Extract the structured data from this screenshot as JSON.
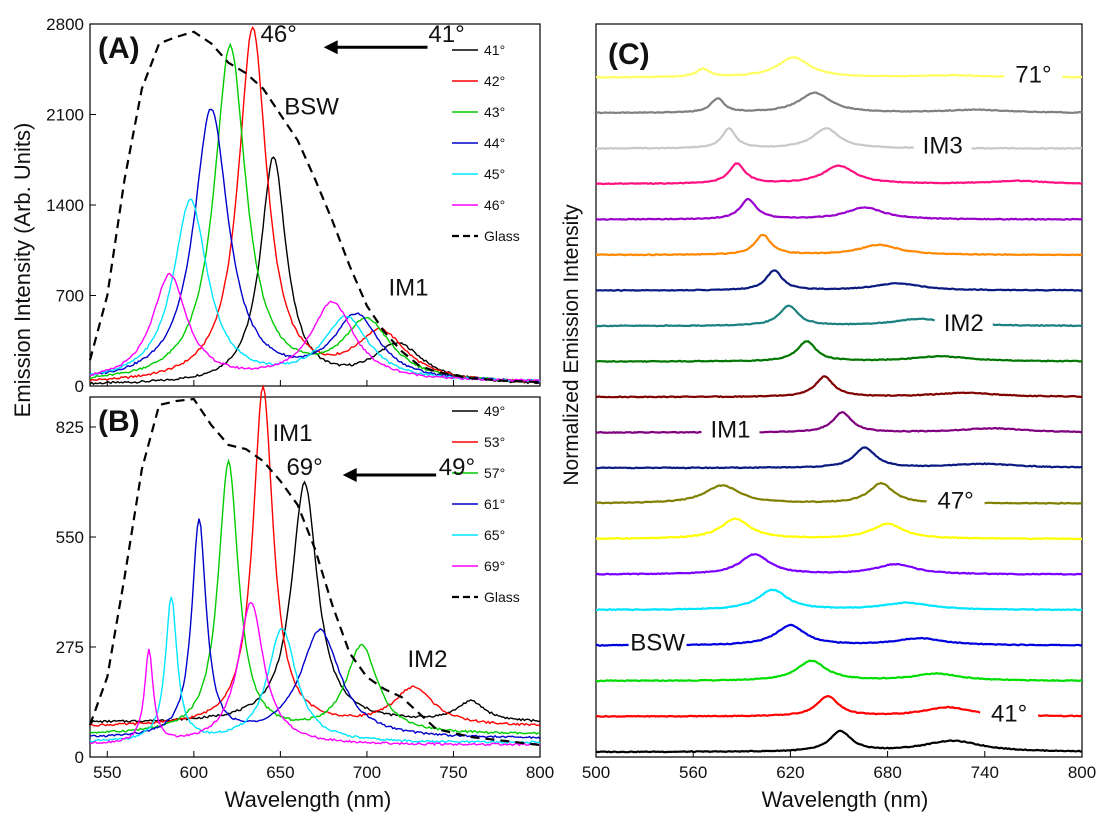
{
  "figure": {
    "y_title_left": "Emission Intensity (Arb. Units)",
    "y_title_right": "Normalized Emission Intensity",
    "x_title": "Wavelength (nm)"
  },
  "chart_data": [
    {
      "panel": "A",
      "type": "line",
      "panel_label": "(A)",
      "xlim": [
        540,
        800
      ],
      "ylim": [
        0,
        2800
      ],
      "xticks": [],
      "yticks": [
        0,
        700,
        1400,
        2100,
        2800
      ],
      "annotations": [
        {
          "text": "BSW",
          "x": 668,
          "y": 2100
        },
        {
          "text": "IM1",
          "x": 724,
          "y": 700
        },
        {
          "text": "46°",
          "x": 649,
          "y": 2660
        },
        {
          "text": "41°",
          "x": 746,
          "y": 2660
        }
      ],
      "arrow": {
        "from": [
          735,
          2620
        ],
        "to": [
          675,
          2620
        ]
      },
      "legend": {
        "position": "top-right",
        "entries": [
          "41°",
          "42°",
          "43°",
          "44°",
          "45°",
          "46°",
          "Glass"
        ]
      },
      "series": [
        {
          "name": "41°",
          "color": "#000000",
          "peaks": [
            [
              646,
              1750,
              9
            ],
            [
              718,
              300,
              18
            ]
          ],
          "baseline": 5
        },
        {
          "name": "42°",
          "color": "#ff0000",
          "peaks": [
            [
              634,
              2740,
              10
            ],
            [
              708,
              380,
              18
            ]
          ],
          "baseline": 10
        },
        {
          "name": "43°",
          "color": "#00cc00",
          "peaks": [
            [
              621,
              2600,
              11
            ],
            [
              700,
              460,
              17
            ]
          ],
          "baseline": 15
        },
        {
          "name": "44°",
          "color": "#0000cc",
          "peaks": [
            [
              610,
              2110,
              12
            ],
            [
              694,
              500,
              16
            ]
          ],
          "baseline": 20
        },
        {
          "name": "45°",
          "color": "#00e5ff",
          "peaks": [
            [
              598,
              1400,
              12
            ],
            [
              688,
              490,
              16
            ]
          ],
          "baseline": 25
        },
        {
          "name": "46°",
          "color": "#ff00ff",
          "peaks": [
            [
              586,
              820,
              12
            ],
            [
              680,
              610,
              15
            ]
          ],
          "baseline": 30
        },
        {
          "name": "Glass",
          "color": "#000000",
          "dash": true,
          "points": [
            [
              540,
              200
            ],
            [
              550,
              700
            ],
            [
              560,
              1600
            ],
            [
              570,
              2300
            ],
            [
              580,
              2650
            ],
            [
              590,
              2700
            ],
            [
              600,
              2740
            ],
            [
              610,
              2650
            ],
            [
              620,
              2500
            ],
            [
              630,
              2420
            ],
            [
              640,
              2300
            ],
            [
              650,
              2100
            ],
            [
              660,
              1900
            ],
            [
              670,
              1600
            ],
            [
              680,
              1280
            ],
            [
              690,
              930
            ],
            [
              700,
              620
            ],
            [
              710,
              420
            ],
            [
              720,
              270
            ],
            [
              730,
              160
            ],
            [
              740,
              110
            ],
            [
              760,
              60
            ],
            [
              780,
              40
            ],
            [
              800,
              30
            ]
          ]
        }
      ]
    },
    {
      "panel": "B",
      "type": "line",
      "panel_label": "(B)",
      "xlim": [
        540,
        800
      ],
      "ylim": [
        0,
        900
      ],
      "xticks": [
        550,
        600,
        650,
        700,
        750,
        800
      ],
      "yticks": [
        0,
        275,
        550,
        825
      ],
      "annotations": [
        {
          "text": "IM1",
          "x": 657,
          "y": 790
        },
        {
          "text": "IM2",
          "x": 735,
          "y": 225
        },
        {
          "text": "69°",
          "x": 664,
          "y": 705
        },
        {
          "text": "49°",
          "x": 752,
          "y": 705
        }
      ],
      "arrow": {
        "from": [
          740,
          705
        ],
        "to": [
          686,
          705
        ]
      },
      "legend": {
        "position": "top-right",
        "entries": [
          "49°",
          "53°",
          "57°",
          "61°",
          "65°",
          "69°",
          "Glass"
        ]
      },
      "series": [
        {
          "name": "49°",
          "color": "#000000",
          "peaks": [
            [
              664,
              600,
              9
            ],
            [
              760,
              50,
              10
            ]
          ],
          "baseline": 85
        },
        {
          "name": "53°",
          "color": "#ff0000",
          "peaks": [
            [
              640,
              850,
              7
            ],
            [
              727,
              95,
              14
            ]
          ],
          "baseline": 75
        },
        {
          "name": "57°",
          "color": "#00cc00",
          "peaks": [
            [
              620,
              680,
              7
            ],
            [
              697,
              220,
              11
            ]
          ],
          "baseline": 55
        },
        {
          "name": "61°",
          "color": "#0000cc",
          "peaks": [
            [
              603,
              540,
              5
            ],
            [
              673,
              270,
              14
            ]
          ],
          "baseline": 45
        },
        {
          "name": "65°",
          "color": "#00e5ff",
          "peaks": [
            [
              587,
              360,
              4
            ],
            [
              651,
              285,
              10
            ]
          ],
          "baseline": 35
        },
        {
          "name": "69°",
          "color": "#ff00ff",
          "peaks": [
            [
              574,
              230,
              3
            ],
            [
              633,
              355,
              9
            ]
          ],
          "baseline": 30
        },
        {
          "name": "Glass",
          "color": "#000000",
          "dash": true,
          "points": [
            [
              540,
              80
            ],
            [
              550,
              200
            ],
            [
              560,
              450
            ],
            [
              570,
              720
            ],
            [
              580,
              880
            ],
            [
              590,
              890
            ],
            [
              600,
              895
            ],
            [
              610,
              830
            ],
            [
              620,
              780
            ],
            [
              630,
              770
            ],
            [
              640,
              740
            ],
            [
              650,
              690
            ],
            [
              660,
              630
            ],
            [
              670,
              520
            ],
            [
              680,
              380
            ],
            [
              690,
              260
            ],
            [
              700,
              200
            ],
            [
              710,
              170
            ],
            [
              720,
              150
            ],
            [
              730,
              110
            ],
            [
              740,
              70
            ],
            [
              760,
              50
            ],
            [
              780,
              40
            ],
            [
              800,
              30
            ]
          ]
        }
      ]
    },
    {
      "panel": "C",
      "type": "line",
      "panel_label": "(C)",
      "xlim": [
        500,
        800
      ],
      "xticks": [
        500,
        560,
        620,
        680,
        740,
        800
      ],
      "annotations": [
        {
          "text": "71°",
          "x": 770,
          "trace": 19
        },
        {
          "text": "IM3",
          "x": 714,
          "trace": 17
        },
        {
          "text": "IM2",
          "x": 727,
          "trace": 12
        },
        {
          "text": "IM1",
          "x": 583,
          "trace": 9
        },
        {
          "text": "47°",
          "x": 722,
          "trace": 7
        },
        {
          "text": "BSW",
          "x": 538,
          "trace": 3
        },
        {
          "text": "41°",
          "x": 755,
          "trace": 1
        }
      ],
      "traces": [
        {
          "color": "#000000",
          "peaks": [
            [
              651,
              1.0,
              8
            ],
            [
              720,
              0.55,
              22
            ]
          ]
        },
        {
          "color": "#ff0000",
          "peaks": [
            [
              643,
              1.0,
              8
            ],
            [
              717,
              0.45,
              18
            ]
          ]
        },
        {
          "color": "#00dd00",
          "peaks": [
            [
              633,
              1.0,
              11
            ],
            [
              710,
              0.35,
              18
            ]
          ]
        },
        {
          "color": "#0000dd",
          "peaks": [
            [
              620,
              1.0,
              11
            ],
            [
              700,
              0.35,
              18
            ]
          ]
        },
        {
          "color": "#00e5ff",
          "peaks": [
            [
              609,
              1.0,
              11
            ],
            [
              692,
              0.35,
              18
            ]
          ]
        },
        {
          "color": "#7a00ff",
          "peaks": [
            [
              598,
              1.0,
              11
            ],
            [
              685,
              0.5,
              15
            ]
          ]
        },
        {
          "color": "#ffff00",
          "peaks": [
            [
              586,
              1.0,
              11
            ],
            [
              680,
              0.75,
              12
            ]
          ]
        },
        {
          "color": "#808000",
          "peaks": [
            [
              578,
              0.9,
              13
            ],
            [
              676,
              1.0,
              9
            ]
          ]
        },
        {
          "color": "#0a1a80",
          "peaks": [
            [
              666,
              1.0,
              8
            ],
            [
              740,
              0.2,
              25
            ]
          ]
        },
        {
          "color": "#800080",
          "peaks": [
            [
              652,
              1.0,
              7
            ],
            [
              745,
              0.2,
              25
            ]
          ]
        },
        {
          "color": "#800000",
          "peaks": [
            [
              641,
              1.0,
              7
            ],
            [
              728,
              0.2,
              25
            ]
          ]
        },
        {
          "color": "#007700",
          "peaks": [
            [
              630,
              1.0,
              7
            ],
            [
              713,
              0.25,
              22
            ]
          ]
        },
        {
          "color": "#1a8080",
          "peaks": [
            [
              619,
              1.0,
              7
            ],
            [
              700,
              0.35,
              20
            ]
          ]
        },
        {
          "color": "#0a1a80",
          "peaks": [
            [
              610,
              1.0,
              6
            ],
            [
              686,
              0.35,
              18
            ]
          ]
        },
        {
          "color": "#ff8800",
          "peaks": [
            [
              603,
              1.0,
              6
            ],
            [
              675,
              0.5,
              15
            ]
          ]
        },
        {
          "color": "#9900cc",
          "peaks": [
            [
              594,
              1.0,
              6
            ],
            [
              666,
              0.6,
              14
            ]
          ]
        },
        {
          "color": "#ff1080",
          "peaks": [
            [
              587,
              1.0,
              6
            ],
            [
              650,
              0.9,
              12
            ],
            [
              760,
              0.15,
              20
            ]
          ]
        },
        {
          "color": "#c8c8c8",
          "peaks": [
            [
              582,
              1.0,
              5
            ],
            [
              642,
              1.0,
              10
            ]
          ]
        },
        {
          "color": "#808080",
          "peaks": [
            [
              575,
              0.7,
              5
            ],
            [
              635,
              1.0,
              12
            ],
            [
              735,
              0.15,
              25
            ]
          ]
        },
        {
          "color": "#ffff60",
          "peaks": [
            [
              566,
              0.4,
              5
            ],
            [
              622,
              1.0,
              12
            ],
            [
              720,
              0.1,
              25
            ]
          ]
        }
      ]
    }
  ]
}
